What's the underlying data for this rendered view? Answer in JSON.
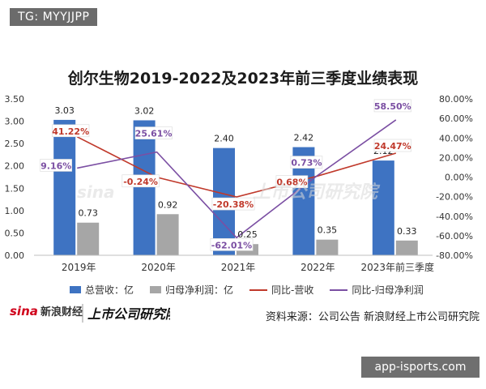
{
  "header_badge": "TG: MYYJJPP",
  "bottom_badge": "app-isports.com",
  "chart_data": {
    "type": "bar",
    "title": "创尔生物2019-2022及2023年前三季度业绩表现",
    "categories": [
      "2019年",
      "2020年",
      "2021年",
      "2022年",
      "2023年前三季度"
    ],
    "series": [
      {
        "name": "总营收：亿",
        "kind": "bar",
        "axis": "left",
        "values": [
          3.03,
          3.02,
          2.4,
          2.42,
          2.12
        ],
        "labels": [
          "3.03",
          "3.02",
          "2.40",
          "2.42",
          "2.12"
        ],
        "color": "#3e73c2"
      },
      {
        "name": "归母净利润：亿",
        "kind": "bar",
        "axis": "left",
        "values": [
          0.73,
          0.92,
          0.25,
          0.35,
          0.33
        ],
        "labels": [
          "0.73",
          "0.92",
          "0.25",
          "0.35",
          "0.33"
        ],
        "color": "#a6a6a6"
      },
      {
        "name": "同比-营收",
        "kind": "line",
        "axis": "right",
        "values": [
          41.22,
          -0.24,
          -20.38,
          0.68,
          24.47
        ],
        "labels": [
          "41.22%",
          "-0.24%",
          "-20.38%",
          "0.68%",
          "24.47%"
        ],
        "color": "#c0392b"
      },
      {
        "name": "同比-归母净利润",
        "kind": "line",
        "axis": "right",
        "values": [
          9.16,
          25.61,
          -62.01,
          0.73,
          58.5
        ],
        "labels": [
          "9.16%",
          "25.61%",
          "-62.01%",
          "0.73%",
          "58.50%"
        ],
        "color": "#7b4fa3"
      }
    ],
    "y_left": {
      "min": 0,
      "max": 3.5,
      "ticks": [
        "0.00",
        "0.50",
        "1.00",
        "1.50",
        "2.00",
        "2.50",
        "3.00",
        "3.50"
      ]
    },
    "y_right": {
      "min": -80,
      "max": 80,
      "ticks": [
        "-80.00%",
        "-60.00%",
        "-40.00%",
        "-20.00%",
        "0.00%",
        "20.00%",
        "40.00%",
        "60.00%",
        "80.00%"
      ]
    },
    "grid": false,
    "legend_position": "bottom"
  },
  "footer": {
    "logo_main": "新浪财经",
    "logo_sub": "上市公司研究院",
    "source": "资料来源：公司公告 新浪财经上市公司研究院"
  },
  "watermark": {
    "brand": "sina",
    "text": "上市公司研究院"
  }
}
